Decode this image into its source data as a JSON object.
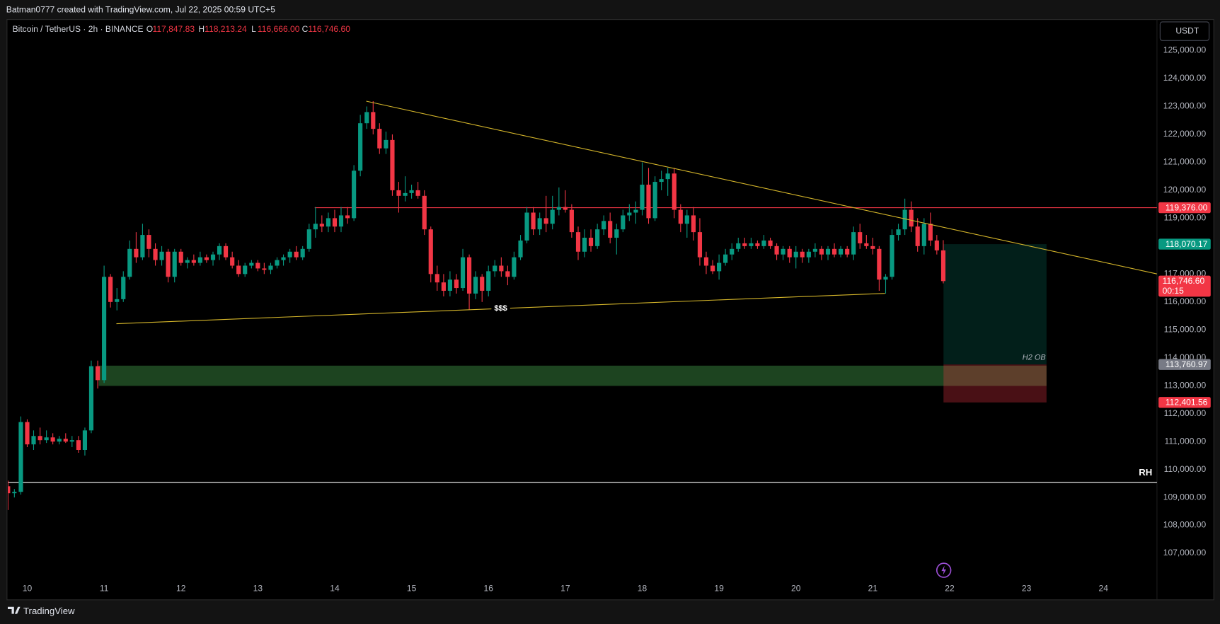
{
  "header": {
    "author_line": "Batman0777 created with TradingView.com, Jul 22, 2025 00:59 UTC+5",
    "symbol": "Bitcoin / TetherUS · 2h · BINANCE",
    "currency": "USDT",
    "brand": "TradingView"
  },
  "chart_data": {
    "type": "candlestick",
    "legend": [
      {
        "prefix": "O",
        "label": "117,847.83"
      },
      {
        "prefix": "H",
        "label": "118,213.24"
      },
      {
        "prefix": "L",
        "label": "116,666.00"
      },
      {
        "prefix": "C",
        "label": "116,746.60"
      }
    ],
    "up_color": "#089981",
    "down_color": "#f23645",
    "x": [
      9.75,
      9.833,
      9.917,
      10,
      10.083,
      10.167,
      10.25,
      10.333,
      10.417,
      10.5,
      10.583,
      10.667,
      10.75,
      10.833,
      10.917,
      11,
      11.083,
      11.167,
      11.25,
      11.333,
      11.417,
      11.5,
      11.583,
      11.667,
      11.75,
      11.833,
      11.917,
      12,
      12.083,
      12.167,
      12.25,
      12.333,
      12.417,
      12.5,
      12.583,
      12.667,
      12.75,
      12.833,
      12.917,
      13,
      13.083,
      13.167,
      13.25,
      13.333,
      13.417,
      13.5,
      13.583,
      13.667,
      13.75,
      13.833,
      13.917,
      14,
      14.083,
      14.167,
      14.25,
      14.333,
      14.417,
      14.5,
      14.583,
      14.667,
      14.75,
      14.833,
      14.917,
      15,
      15.083,
      15.167,
      15.25,
      15.333,
      15.417,
      15.5,
      15.583,
      15.667,
      15.75,
      15.833,
      15.917,
      16,
      16.083,
      16.167,
      16.25,
      16.333,
      16.417,
      16.5,
      16.583,
      16.667,
      16.75,
      16.833,
      16.917,
      17,
      17.083,
      17.167,
      17.25,
      17.333,
      17.417,
      17.5,
      17.583,
      17.667,
      17.75,
      17.833,
      17.917,
      18,
      18.083,
      18.167,
      18.25,
      18.333,
      18.417,
      18.5,
      18.583,
      18.667,
      18.75,
      18.833,
      18.917,
      19,
      19.083,
      19.167,
      19.25,
      19.333,
      19.417,
      19.5,
      19.583,
      19.667,
      19.75,
      19.833,
      19.917,
      20,
      20.083,
      20.167,
      20.25,
      20.333,
      20.417,
      20.5,
      20.583,
      20.667,
      20.75,
      20.833,
      20.917,
      21,
      21.083,
      21.167,
      21.25,
      21.333,
      21.417,
      21.5,
      21.583,
      21.667,
      21.75,
      21.833,
      21.917
    ],
    "open": [
      109400,
      109150,
      109200,
      111700,
      110900,
      111200,
      111050,
      111150,
      111000,
      111100,
      111000,
      111050,
      110700,
      111400,
      113700,
      113200,
      116900,
      116000,
      116100,
      116900,
      117900,
      117600,
      118400,
      117900,
      117500,
      117800,
      116900,
      117800,
      117400,
      117500,
      117400,
      117600,
      117500,
      117700,
      118000,
      117600,
      117300,
      117000,
      117300,
      117400,
      117200,
      117150,
      117300,
      117500,
      117600,
      117800,
      117600,
      117900,
      118600,
      118800,
      118700,
      119000,
      118700,
      119100,
      119000,
      120700,
      122400,
      122800,
      122200,
      121500,
      121800,
      120000,
      119800,
      119900,
      120000,
      119800,
      118600,
      117000,
      116700,
      116400,
      116800,
      116500,
      117600,
      116300,
      116900,
      116400,
      117100,
      117300,
      117100,
      116900,
      117600,
      118200,
      119200,
      118600,
      119000,
      118800,
      119300,
      119400,
      119300,
      118500,
      117800,
      118300,
      118000,
      118600,
      118900,
      118300,
      118600,
      119100,
      119200,
      119300,
      120200,
      119000,
      120300,
      120400,
      120600,
      119300,
      118800,
      119100,
      118500,
      117600,
      117300,
      117100,
      117400,
      117700,
      117900,
      118100,
      118000,
      118100,
      118000,
      118200,
      118000,
      117700,
      117900,
      117600,
      117800,
      117600,
      117800,
      117900,
      117700,
      117900,
      117700,
      117900,
      117700,
      118500,
      118100,
      118000,
      117900,
      116800,
      116900,
      118400,
      118600,
      119300,
      118700,
      118000,
      118800,
      118200,
      117847.83
    ],
    "high": [
      109600,
      109300,
      111900,
      111800,
      111400,
      111500,
      111400,
      111300,
      111200,
      111300,
      111200,
      111200,
      111500,
      113900,
      113900,
      117300,
      117000,
      116500,
      117100,
      118200,
      118500,
      118800,
      118600,
      118100,
      118000,
      117900,
      117900,
      117900,
      117600,
      117700,
      117800,
      117700,
      117800,
      118100,
      118100,
      117800,
      117500,
      117400,
      117500,
      117500,
      117400,
      117400,
      117600,
      117700,
      117900,
      118000,
      118000,
      118800,
      119400,
      119100,
      119200,
      119300,
      119400,
      119400,
      120900,
      122700,
      123000,
      123190,
      122400,
      122100,
      122000,
      120300,
      120500,
      120200,
      120300,
      120000,
      118700,
      117300,
      117000,
      117100,
      117000,
      117900,
      117700,
      117100,
      117000,
      117300,
      117500,
      117600,
      117300,
      117800,
      118400,
      119400,
      119400,
      119200,
      119800,
      119800,
      120100,
      120000,
      119500,
      118700,
      118600,
      118600,
      118800,
      119100,
      119200,
      118800,
      119300,
      119500,
      119600,
      121000,
      120800,
      120500,
      120700,
      120800,
      120800,
      119500,
      119300,
      119400,
      119000,
      117800,
      117500,
      117700,
      117900,
      118100,
      118300,
      118300,
      118300,
      118200,
      118400,
      118300,
      118100,
      118000,
      118000,
      118000,
      117900,
      117900,
      118100,
      118000,
      118000,
      118100,
      118000,
      118000,
      118700,
      118800,
      118400,
      118300,
      118000,
      117000,
      118600,
      118800,
      119700,
      119600,
      119000,
      119000,
      119200,
      118400,
      118213.24
    ],
    "low": [
      108550,
      109000,
      109100,
      110800,
      110700,
      110900,
      110950,
      110900,
      110900,
      110950,
      110800,
      110600,
      110500,
      111300,
      112900,
      113100,
      115800,
      115700,
      116000,
      116800,
      117400,
      117500,
      117600,
      117300,
      117300,
      116700,
      116700,
      117300,
      117200,
      117300,
      117300,
      117400,
      117300,
      117500,
      117500,
      117200,
      116900,
      116900,
      117200,
      117100,
      117000,
      117000,
      117200,
      117300,
      117400,
      117500,
      117500,
      117800,
      118300,
      118500,
      118500,
      118500,
      118500,
      118800,
      118900,
      120500,
      122200,
      122000,
      121300,
      121300,
      119800,
      119200,
      119600,
      119700,
      119700,
      118400,
      116700,
      116400,
      116200,
      116200,
      116300,
      116400,
      115720,
      116100,
      116000,
      116200,
      116900,
      116900,
      116600,
      116800,
      117500,
      118100,
      118400,
      118400,
      118500,
      118600,
      119100,
      119200,
      118300,
      117500,
      117600,
      117800,
      117900,
      118400,
      118100,
      117700,
      118500,
      118900,
      118800,
      119100,
      118800,
      118900,
      120000,
      119800,
      119000,
      118500,
      118300,
      118200,
      117300,
      117000,
      117000,
      116800,
      117300,
      117500,
      117800,
      117900,
      117900,
      117900,
      117900,
      117900,
      117500,
      117500,
      117400,
      117200,
      117400,
      117400,
      117600,
      117500,
      117500,
      117600,
      117600,
      117600,
      117500,
      117900,
      117900,
      117700,
      116400,
      116300,
      116800,
      118200,
      118400,
      118500,
      117800,
      117700,
      118000,
      117700,
      116666
    ],
    "close": [
      109150,
      109200,
      111700,
      110900,
      111200,
      111050,
      111150,
      111000,
      111100,
      111000,
      111050,
      110700,
      111400,
      113700,
      113200,
      116900,
      116000,
      116100,
      116900,
      117900,
      117600,
      118400,
      117900,
      117500,
      117800,
      116900,
      117800,
      117400,
      117500,
      117400,
      117600,
      117500,
      117700,
      118000,
      117600,
      117300,
      117000,
      117300,
      117400,
      117200,
      117150,
      117300,
      117500,
      117600,
      117800,
      117600,
      117900,
      118600,
      118800,
      118700,
      119000,
      118700,
      119100,
      119000,
      120700,
      122400,
      122800,
      122200,
      121500,
      121800,
      120000,
      119800,
      119900,
      120000,
      119800,
      118600,
      117000,
      116700,
      116400,
      116800,
      116500,
      117600,
      116300,
      116900,
      116400,
      117100,
      117300,
      117100,
      116900,
      117600,
      118200,
      119200,
      118600,
      119000,
      118800,
      119300,
      119400,
      119300,
      118500,
      117800,
      118300,
      118000,
      118600,
      118900,
      118300,
      118600,
      119100,
      119200,
      119300,
      120200,
      119000,
      120300,
      120400,
      120600,
      119300,
      118800,
      119100,
      118500,
      117600,
      117300,
      117100,
      117400,
      117700,
      117900,
      118100,
      118000,
      118100,
      118000,
      118200,
      118000,
      117700,
      117900,
      117600,
      117800,
      117600,
      117800,
      117900,
      117700,
      117900,
      117700,
      117900,
      117700,
      118500,
      118100,
      118000,
      117900,
      116800,
      116900,
      118400,
      118600,
      119300,
      118700,
      118000,
      118800,
      118200,
      117847.83,
      116746.6
    ],
    "xlim": [
      9.747,
      24.697
    ],
    "xticks": [
      10,
      11,
      12,
      13,
      14,
      15,
      16,
      17,
      18,
      19,
      20,
      21,
      22,
      23,
      24
    ],
    "ylim": [
      106058,
      126114
    ],
    "yticks": [
      {
        "value": 107000,
        "label": "107,000.00"
      },
      {
        "value": 108000,
        "label": "108,000.00"
      },
      {
        "value": 109000,
        "label": "109,000.00"
      },
      {
        "value": 110000,
        "label": "110,000.00"
      },
      {
        "value": 111000,
        "label": "111,000.00"
      },
      {
        "value": 112000,
        "label": "112,000.00"
      },
      {
        "value": 113000,
        "label": "113,000.00"
      },
      {
        "value": 114000,
        "label": "114,000.00"
      },
      {
        "value": 115000,
        "label": "115,000.00"
      },
      {
        "value": 116000,
        "label": "116,000.00"
      },
      {
        "value": 117000,
        "label": "117,000.00"
      },
      {
        "value": 118000,
        "label": "118,000.00"
      },
      {
        "value": 119000,
        "label": "119,000.00"
      },
      {
        "value": 120000,
        "label": "120,000.00"
      },
      {
        "value": 121000,
        "label": "121,000.00"
      },
      {
        "value": 122000,
        "label": "122,000.00"
      },
      {
        "value": 123000,
        "label": "123,000.00"
      },
      {
        "value": 124000,
        "label": "124,000.00"
      },
      {
        "value": 125000,
        "label": "125,000.00"
      }
    ],
    "levels": [
      {
        "value": 119376,
        "label": "119,376.00",
        "color": "#f23645",
        "x_start": 13.74
      },
      {
        "value": 109540,
        "color": "#ffffff",
        "text": "RH"
      }
    ],
    "trendlines": [
      {
        "x": [
          14.41,
          24.697
        ],
        "y": [
          123190,
          117004
        ],
        "color": "#d4b52a"
      },
      {
        "x": [
          11.16,
          21.16
        ],
        "y": [
          115221,
          116308
        ],
        "color": "#d4b52a",
        "text": "$$$"
      }
    ],
    "zones": [
      {
        "name": "H2 OB",
        "x": [
          10.93,
          23.26
        ],
        "y": [
          112994,
          113719
        ],
        "color": "#1d4420"
      }
    ],
    "position": {
      "x": [
        21.92,
        23.26
      ],
      "entry": {
        "value": 113760.97,
        "label": "113,760.97"
      },
      "target": {
        "value": 118070.17,
        "label": "118,070.17"
      },
      "stop": {
        "value": 112401.56,
        "label": "112,401.56"
      }
    },
    "last_price": {
      "value": 116746.6,
      "label": "116,746.60",
      "countdown": "00:15"
    }
  }
}
